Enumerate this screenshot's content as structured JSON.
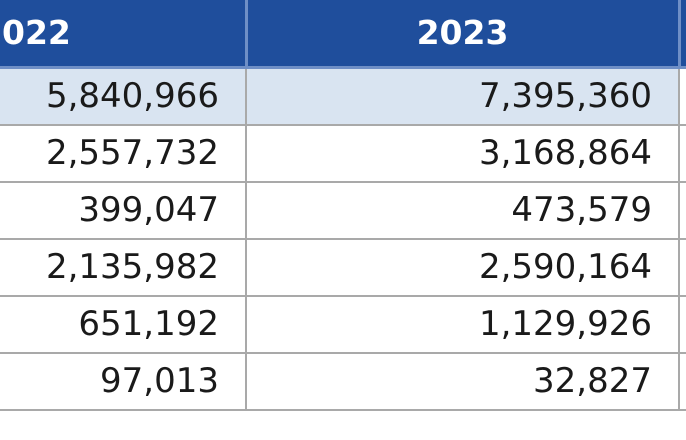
{
  "table": {
    "headers": [
      "022",
      "2023"
    ],
    "rows": [
      [
        "5,840,966",
        "7,395,360"
      ],
      [
        "2,557,732",
        "3,168,864"
      ],
      [
        "399,047",
        "473,579"
      ],
      [
        "2,135,982",
        "2,590,164"
      ],
      [
        "651,192",
        "1,129,926"
      ],
      [
        "97,013",
        "32,827"
      ]
    ]
  },
  "colors": {
    "header_bg": "#1f4e9c",
    "header_text": "#ffffff",
    "highlight_row_bg": "#d9e4f1",
    "grid_line": "#a9a9a9"
  }
}
